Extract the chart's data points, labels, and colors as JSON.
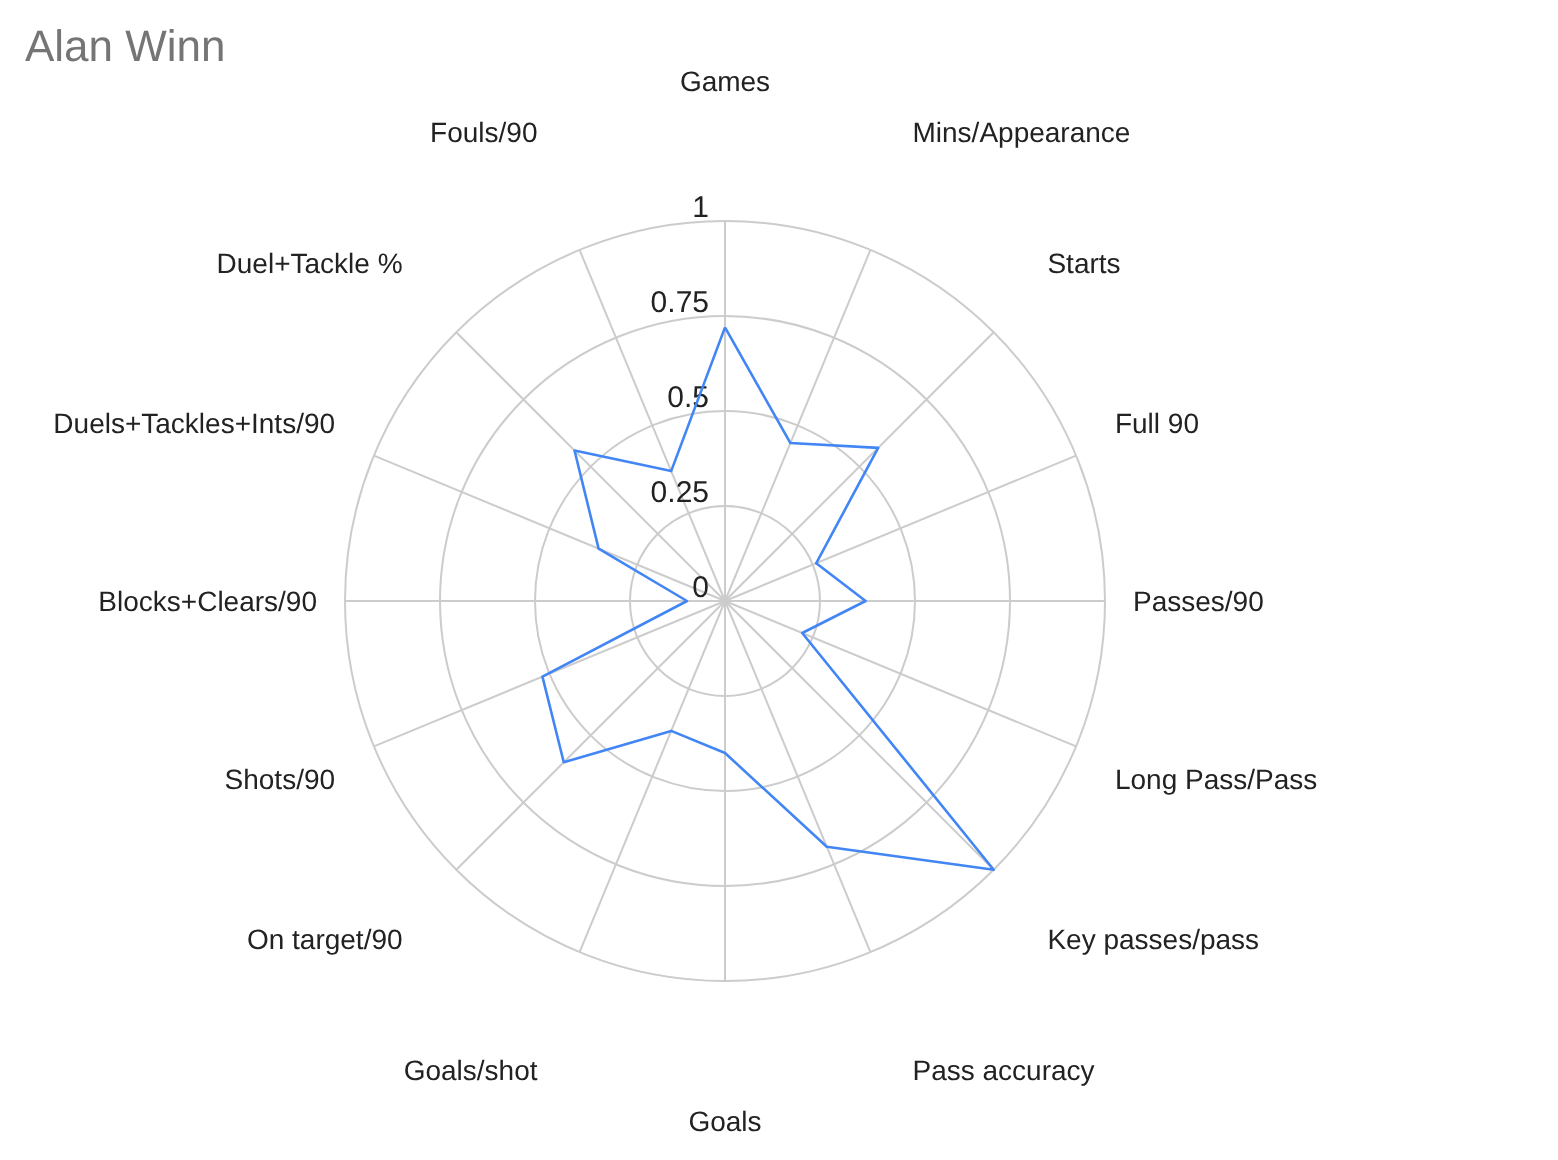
{
  "chart_data": {
    "type": "radar",
    "title": "Alan Winn",
    "categories": [
      "Games",
      "Mins/Appearance",
      "Starts",
      "Full 90",
      "Passes/90",
      "Long Pass/Pass",
      "Key passes/pass",
      "Pass accuracy",
      "Goals",
      "Goals/shot",
      "On target/90",
      "Shots/90",
      "Blocks+Clears/90",
      "Duels+Tackles+Ints/90",
      "Duel+Tackle %",
      "Fouls/90"
    ],
    "series": [
      {
        "color": "#4285f4",
        "values": [
          0.72,
          0.45,
          0.57,
          0.26,
          0.37,
          0.22,
          1.0,
          0.7,
          0.4,
          0.37,
          0.6,
          0.52,
          0.1,
          0.36,
          0.56,
          0.37
        ]
      }
    ],
    "ylim": [
      0,
      1
    ],
    "yticks": [
      0,
      0.25,
      0.5,
      0.75,
      1
    ],
    "grid": true
  }
}
